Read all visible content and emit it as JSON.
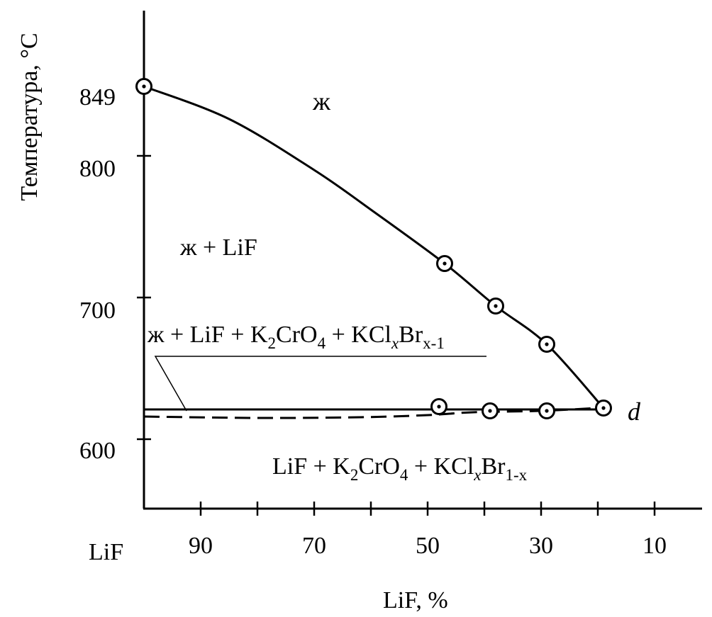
{
  "chart_data": {
    "type": "line",
    "title": "",
    "xlabel": "LiF, %",
    "ylabel": "Температура, °C",
    "x_axis_origin_label": "LiF",
    "x_reversed": true,
    "xlim": [
      100,
      0
    ],
    "ylim": [
      550,
      900
    ],
    "x_ticks": [
      90,
      80,
      70,
      60,
      50,
      40,
      30,
      20,
      10
    ],
    "x_tick_labels": [
      "90",
      "70",
      "50",
      "30",
      "10"
    ],
    "y_tick_labels": [
      "849",
      "800",
      "700",
      "600"
    ],
    "series": [
      {
        "style": "solid-curve",
        "points": [
          [
            100,
            849
          ],
          [
            85,
            826
          ],
          [
            70,
            790
          ],
          [
            60,
            762
          ],
          [
            47,
            724
          ],
          [
            38,
            694
          ],
          [
            29,
            667
          ],
          [
            19,
            622
          ]
        ]
      },
      {
        "style": "solid-horizontal",
        "points": [
          [
            100,
            621
          ],
          [
            19,
            621
          ]
        ]
      },
      {
        "style": "dashed",
        "points": [
          [
            100,
            616
          ],
          [
            80,
            615
          ],
          [
            62,
            615.5
          ],
          [
            50,
            617
          ],
          [
            42,
            619
          ],
          [
            30,
            620
          ],
          [
            20,
            622
          ]
        ]
      }
    ],
    "marked_points": [
      {
        "x": 100,
        "y": 849
      },
      {
        "x": 47,
        "y": 724
      },
      {
        "x": 38,
        "y": 694
      },
      {
        "x": 29,
        "y": 667
      },
      {
        "x": 19,
        "y": 622
      },
      {
        "x": 48,
        "y": 623
      },
      {
        "x": 39,
        "y": 620
      },
      {
        "x": 29,
        "y": 620
      }
    ],
    "annotations": {
      "liquid": "ж",
      "liquid_lif": "ж + LiF",
      "four_phase_parts": [
        "ж + LiF + K",
        "2",
        "CrO",
        "4",
        " + KCl",
        "x",
        "Br",
        "x-1"
      ],
      "solid_parts": [
        "LiF + K",
        "2",
        "CrO",
        "4",
        " + KCl",
        "x",
        "Br",
        "1-x"
      ],
      "point_label": "d"
    }
  }
}
